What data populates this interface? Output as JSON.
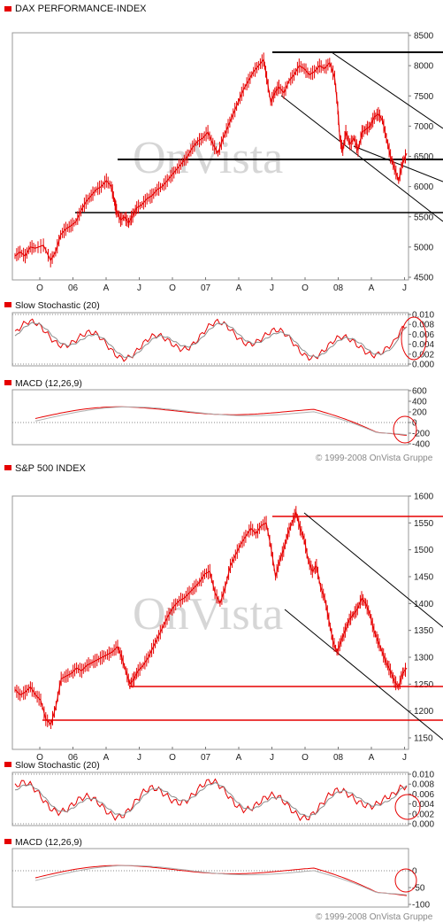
{
  "copyright": "© 1999-2008 OnVista Gruppe",
  "watermark": "OnVista",
  "colors": {
    "accent": "#e60000",
    "support": "#000000",
    "stoch": "#8a8a8a",
    "signal": "#b0b0b0"
  },
  "chart_data": [
    {
      "type": "line",
      "title": "DAX PERFORMANCE-INDEX",
      "x_ticks": [
        "O",
        "06",
        "A",
        "J",
        "O",
        "07",
        "A",
        "J",
        "O",
        "08",
        "A",
        "J"
      ],
      "ylim": [
        4500,
        8500
      ],
      "y_ticks": [
        "4500",
        "5000",
        "5500",
        "6000",
        "6500",
        "7000",
        "7500",
        "8000",
        "8500"
      ],
      "grid": false,
      "series": [
        {
          "points": [
            [
              0,
              4850
            ],
            [
              5,
              4920
            ],
            [
              10,
              4850
            ],
            [
              15,
              5000
            ],
            [
              20,
              4980
            ],
            [
              28,
              5030
            ],
            [
              35,
              4780
            ],
            [
              40,
              4920
            ],
            [
              45,
              5200
            ],
            [
              50,
              5300
            ],
            [
              55,
              5350
            ],
            [
              60,
              5420
            ],
            [
              65,
              5600
            ],
            [
              70,
              5750
            ],
            [
              75,
              5850
            ],
            [
              80,
              5950
            ],
            [
              85,
              6000
            ],
            [
              90,
              6100
            ],
            [
              95,
              6000
            ],
            [
              98,
              5750
            ],
            [
              100,
              5600
            ],
            [
              104,
              5450
            ],
            [
              108,
              5500
            ],
            [
              112,
              5400
            ],
            [
              116,
              5520
            ],
            [
              120,
              5650
            ],
            [
              125,
              5700
            ],
            [
              130,
              5800
            ],
            [
              135,
              5850
            ],
            [
              140,
              5950
            ],
            [
              145,
              6000
            ],
            [
              150,
              6100
            ],
            [
              155,
              6200
            ],
            [
              160,
              6300
            ],
            [
              165,
              6400
            ],
            [
              170,
              6500
            ],
            [
              175,
              6650
            ],
            [
              180,
              6750
            ],
            [
              185,
              6800
            ],
            [
              190,
              6900
            ],
            [
              195,
              6700
            ],
            [
              200,
              6550
            ],
            [
              205,
              6800
            ],
            [
              210,
              7000
            ],
            [
              215,
              7200
            ],
            [
              220,
              7400
            ],
            [
              225,
              7600
            ],
            [
              230,
              7750
            ],
            [
              235,
              7900
            ],
            [
              240,
              8000
            ],
            [
              245,
              8100
            ],
            [
              248,
              7800
            ],
            [
              252,
              7400
            ],
            [
              256,
              7550
            ],
            [
              260,
              7650
            ],
            [
              265,
              7550
            ],
            [
              270,
              7750
            ],
            [
              275,
              7850
            ],
            [
              280,
              8000
            ],
            [
              285,
              7950
            ],
            [
              290,
              7850
            ],
            [
              295,
              7900
            ],
            [
              300,
              8000
            ],
            [
              305,
              7950
            ],
            [
              310,
              8050
            ],
            [
              315,
              7800
            ],
            [
              318,
              7300
            ],
            [
              320,
              6800
            ],
            [
              323,
              6600
            ],
            [
              326,
              6900
            ],
            [
              330,
              6700
            ],
            [
              334,
              6800
            ],
            [
              338,
              6600
            ],
            [
              342,
              6900
            ],
            [
              346,
              6950
            ],
            [
              350,
              7000
            ],
            [
              354,
              7150
            ],
            [
              358,
              7200
            ],
            [
              362,
              7100
            ],
            [
              366,
              6800
            ],
            [
              370,
              6500
            ],
            [
              374,
              6300
            ],
            [
              378,
              6100
            ],
            [
              382,
              6400
            ],
            [
              386,
              6550
            ]
          ]
        }
      ],
      "annotations": [
        "support 6130",
        "support 5340",
        "resistance 8120",
        "downtrend channel"
      ]
    },
    {
      "type": "line",
      "title": "Slow Stochastic (20)",
      "ylim": [
        0,
        0.01
      ],
      "y_ticks": [
        "0.010",
        "0.008",
        "0.006",
        "0.004",
        "0.002",
        "0.000"
      ]
    },
    {
      "type": "line",
      "title": "MACD (12,26,9)",
      "ylim": [
        -400,
        600
      ],
      "y_ticks": [
        "600",
        "400",
        "200",
        "0",
        "-200",
        "-400"
      ]
    },
    {
      "type": "line",
      "title": "S&P 500 INDEX",
      "x_ticks": [
        "O",
        "06",
        "A",
        "J",
        "O",
        "07",
        "A",
        "J",
        "O",
        "08",
        "A",
        "J"
      ],
      "ylim": [
        1150,
        1600
      ],
      "y_ticks": [
        "1150",
        "1200",
        "1250",
        "1300",
        "1350",
        "1400",
        "1450",
        "1500",
        "1550",
        "1600"
      ],
      "grid": false,
      "series": [
        {
          "points": [
            [
              0,
              1240
            ],
            [
              5,
              1230
            ],
            [
              10,
              1235
            ],
            [
              15,
              1245
            ],
            [
              20,
              1230
            ],
            [
              25,
              1220
            ],
            [
              30,
              1185
            ],
            [
              35,
              1175
            ],
            [
              40,
              1210
            ],
            [
              45,
              1260
            ],
            [
              50,
              1265
            ],
            [
              55,
              1270
            ],
            [
              60,
              1280
            ],
            [
              65,
              1275
            ],
            [
              70,
              1285
            ],
            [
              75,
              1290
            ],
            [
              80,
              1295
            ],
            [
              85,
              1300
            ],
            [
              90,
              1305
            ],
            [
              95,
              1310
            ],
            [
              100,
              1320
            ],
            [
              104,
              1300
            ],
            [
              108,
              1275
            ],
            [
              112,
              1250
            ],
            [
              116,
              1260
            ],
            [
              120,
              1275
            ],
            [
              125,
              1285
            ],
            [
              130,
              1300
            ],
            [
              135,
              1320
            ],
            [
              140,
              1340
            ],
            [
              145,
              1360
            ],
            [
              150,
              1380
            ],
            [
              155,
              1395
            ],
            [
              160,
              1405
            ],
            [
              165,
              1410
            ],
            [
              170,
              1420
            ],
            [
              175,
              1430
            ],
            [
              180,
              1440
            ],
            [
              185,
              1455
            ],
            [
              190,
              1460
            ],
            [
              195,
              1420
            ],
            [
              200,
              1400
            ],
            [
              205,
              1430
            ],
            [
              210,
              1470
            ],
            [
              215,
              1490
            ],
            [
              220,
              1510
            ],
            [
              225,
              1525
            ],
            [
              230,
              1540
            ],
            [
              235,
              1530
            ],
            [
              240,
              1545
            ],
            [
              245,
              1550
            ],
            [
              250,
              1500
            ],
            [
              254,
              1450
            ],
            [
              258,
              1480
            ],
            [
              262,
              1500
            ],
            [
              266,
              1530
            ],
            [
              270,
              1550
            ],
            [
              274,
              1570
            ],
            [
              278,
              1540
            ],
            [
              282,
              1520
            ],
            [
              286,
              1480
            ],
            [
              290,
              1460
            ],
            [
              294,
              1470
            ],
            [
              298,
              1430
            ],
            [
              302,
              1410
            ],
            [
              306,
              1370
            ],
            [
              310,
              1330
            ],
            [
              314,
              1310
            ],
            [
              318,
              1330
            ],
            [
              322,
              1350
            ],
            [
              326,
              1370
            ],
            [
              330,
              1380
            ],
            [
              334,
              1390
            ],
            [
              338,
              1410
            ],
            [
              342,
              1400
            ],
            [
              346,
              1380
            ],
            [
              350,
              1350
            ],
            [
              354,
              1330
            ],
            [
              358,
              1310
            ],
            [
              362,
              1290
            ],
            [
              366,
              1275
            ],
            [
              370,
              1255
            ],
            [
              374,
              1245
            ],
            [
              378,
              1270
            ],
            [
              382,
              1280
            ]
          ]
        }
      ],
      "annotations": [
        "support 1230",
        "support 1185",
        "resistance 1555",
        "downtrend channel"
      ]
    },
    {
      "type": "line",
      "title": "Slow Stochastic (20)",
      "ylim": [
        0,
        0.01
      ],
      "y_ticks": [
        "0.010",
        "0.008",
        "0.006",
        "0.004",
        "0.002",
        "0.000"
      ]
    },
    {
      "type": "line",
      "title": "MACD (12,26,9)",
      "ylim": [
        -100,
        50
      ],
      "y_ticks": [
        "0",
        "-50",
        "-100"
      ]
    }
  ]
}
